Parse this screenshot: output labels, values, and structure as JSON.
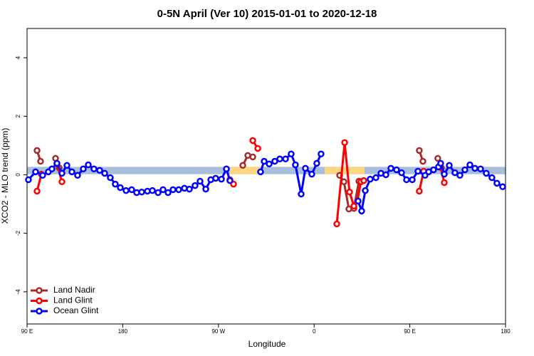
{
  "chart_data": {
    "type": "line",
    "title": "0-5N April (Ver 10)   2015-01-01 to 2020-12-18",
    "xlabel": "Longitude",
    "ylabel": "XCO2 - MLO trend (ppm)",
    "xlim": [
      90,
      540
    ],
    "ylim": [
      -5.1,
      5
    ],
    "xticks": [
      {
        "value": 90,
        "label": "90 E"
      },
      {
        "value": 180,
        "label": "180"
      },
      {
        "value": 270,
        "label": "90 W"
      },
      {
        "value": 360,
        "label": "0"
      },
      {
        "value": 450,
        "label": "90 E"
      },
      {
        "value": 540,
        "label": "180"
      }
    ],
    "yticks": [
      -4,
      -2,
      0,
      2,
      4
    ],
    "legend": "bottomleft",
    "band": {
      "ylim": [
        0.02,
        0.27
      ],
      "color": "#a8bfdc",
      "highlights": [
        {
          "xlim": [
            280.8,
            311
          ],
          "color": "#fcd77f"
        },
        {
          "xlim": [
            369.9,
            407.4
          ],
          "color": "#fcd77f"
        }
      ]
    },
    "series": [
      {
        "name": "Land Nadir",
        "color": "#a52a2a",
        "x": [
          99.4,
          102.7,
          null,
          116.8,
          120.1,
          null,
          292.9,
          297.6,
          302.3,
          null,
          384,
          388,
          392.7,
          397.4,
          402.1,
          null,
          458.9,
          462.3,
          null,
          476.3,
          479.7
        ],
        "values": [
          0.83,
          0.46,
          null,
          0.56,
          0.24,
          null,
          0.32,
          0.66,
          0.61,
          null,
          -0.02,
          -0.24,
          -1.17,
          -1.15,
          -0.22,
          null,
          0.83,
          0.46,
          null,
          0.56,
          0.24
        ]
      },
      {
        "name": "Land Glint",
        "color": "#ff0000",
        "x": [
          99.4,
          103.4,
          null,
          118.1,
          122.8,
          null,
          280.8,
          284.2,
          null,
          302.3,
          307,
          null,
          381.3,
          388.7,
          393.3,
          397.4,
          400.7,
          404,
          406.7,
          null,
          458.9,
          463,
          null,
          478.4,
          482.4
        ],
        "values": [
          -0.56,
          0.02,
          null,
          0.37,
          -0.24,
          null,
          -0.17,
          -0.32,
          null,
          1.17,
          0.9,
          null,
          -1.68,
          1.1,
          -0.59,
          -1.07,
          -0.9,
          -0.24,
          -0.2,
          null,
          -0.56,
          0.12,
          null,
          0.32,
          -0.27
        ]
      },
      {
        "name": "Ocean Glint",
        "color": "#0000ff",
        "x": [
          91.3,
          98,
          104.7,
          110,
          113.4,
          118.1,
          122.8,
          127.5,
          132.2,
          137.5,
          142.9,
          147.6,
          152.9,
          158.3,
          163,
          168.3,
          173,
          177.7,
          183.1,
          188.4,
          193.1,
          197.8,
          203.2,
          207.9,
          213.2,
          217.9,
          222.6,
          227.3,
          232.6,
          238,
          242.7,
          248,
          252.7,
          258.1,
          262.8,
          267.4,
          272.8,
          277.5,
          280.8,
          null,
          309.6,
          313,
          317.7,
          323,
          327.7,
          333.1,
          338.4,
          342.4,
          347.8,
          351.8,
          357.8,
          362.5,
          366.5,
          null,
          401.4,
          404.7,
          408.1,
          412.7,
          418.1,
          422.8,
          427.5,
          432.2,
          437.5,
          442.2,
          446.9,
          452.3,
          457.6,
          464.3,
          467.7,
          472.3,
          477,
          479,
          482.4,
          487.1,
          492.4,
          497.1,
          501.8,
          506.5,
          511.2,
          516.5,
          521.9,
          527.2,
          531.9,
          537.3
        ],
        "values": [
          -0.17,
          0.1,
          -0.02,
          0.1,
          0.2,
          0.39,
          0.05,
          0.32,
          0.1,
          -0.02,
          0.2,
          0.34,
          0.2,
          0.15,
          0.05,
          -0.1,
          -0.32,
          -0.44,
          -0.54,
          -0.51,
          -0.61,
          -0.59,
          -0.56,
          -0.54,
          -0.61,
          -0.51,
          -0.61,
          -0.51,
          -0.51,
          -0.46,
          -0.49,
          -0.37,
          -0.22,
          -0.49,
          -0.17,
          -0.12,
          -0.15,
          0.2,
          -0.2,
          null,
          0.1,
          0.46,
          0.37,
          0.46,
          0.54,
          0.54,
          0.71,
          0.34,
          -0.66,
          0.22,
          0.02,
          0.39,
          0.71,
          null,
          -0.9,
          -1.24,
          -0.54,
          -0.15,
          -0.1,
          0.05,
          0,
          0.22,
          0.17,
          0.07,
          -0.17,
          -0.17,
          0.12,
          -0.02,
          0.1,
          0.17,
          0.27,
          0.39,
          0.02,
          0.32,
          0.07,
          -0.02,
          0.17,
          0.34,
          0.22,
          0.2,
          0.05,
          -0.1,
          -0.29,
          -0.41
        ]
      }
    ]
  }
}
